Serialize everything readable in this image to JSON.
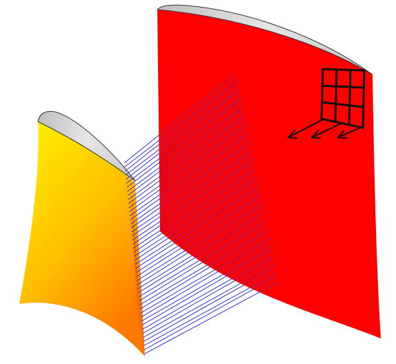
{
  "figure": {
    "description_visible_text": "",
    "objects": [
      {
        "name": "small-blade",
        "color_top": "#ffee00",
        "color_bottom": "#ff7a00",
        "cap_color": "#d9d9d9"
      },
      {
        "name": "large-blade",
        "color": "#ff0000",
        "cap_color": "#d9d9d9"
      },
      {
        "name": "ray-bundle",
        "color": "#2f2fd6",
        "count": 48
      },
      {
        "name": "grid-emitter",
        "color": "#111111",
        "rows": 3,
        "cols": 3,
        "arrows": 3
      }
    ]
  }
}
